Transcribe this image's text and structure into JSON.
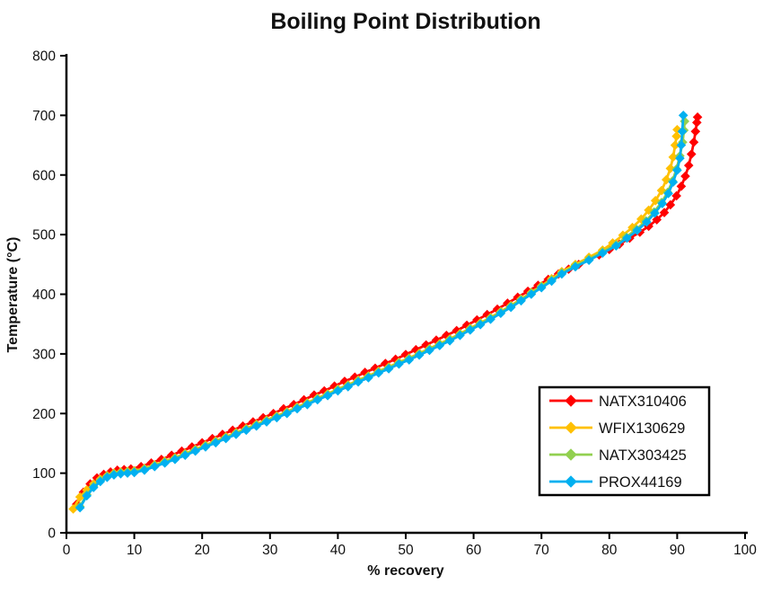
{
  "chart_data": {
    "type": "line",
    "title": "Boiling Point Distribution",
    "xlabel": "% recovery",
    "ylabel": "Temperature (°C)",
    "xlim": [
      0,
      100
    ],
    "ylim": [
      0,
      800
    ],
    "x_ticks": [
      0,
      10,
      20,
      30,
      40,
      50,
      60,
      70,
      80,
      90,
      100
    ],
    "y_ticks": [
      0,
      100,
      200,
      300,
      400,
      500,
      600,
      700,
      800
    ],
    "grid": false,
    "marker": "diamond",
    "legend_position": "inside-lower-right",
    "axis_color": "#000000",
    "text_color": "#111111",
    "series": [
      {
        "name": "NATX310406",
        "color": "#FF0000",
        "points": [
          [
            1.5,
            48
          ],
          [
            2.5,
            68
          ],
          [
            3.5,
            82
          ],
          [
            4.5,
            92
          ],
          [
            5.5,
            98
          ],
          [
            6.5,
            102
          ],
          [
            7.5,
            105
          ],
          [
            8.5,
            106
          ],
          [
            9.5,
            107
          ],
          [
            11,
            111
          ],
          [
            12.5,
            117
          ],
          [
            14,
            123
          ],
          [
            15.5,
            130
          ],
          [
            17,
            137
          ],
          [
            18.5,
            144
          ],
          [
            20,
            151
          ],
          [
            21.5,
            158
          ],
          [
            23,
            165
          ],
          [
            24.5,
            172
          ],
          [
            26,
            179
          ],
          [
            27.5,
            186
          ],
          [
            29,
            193
          ],
          [
            30.5,
            200
          ],
          [
            32,
            208
          ],
          [
            33.5,
            215
          ],
          [
            35,
            223
          ],
          [
            36.5,
            231
          ],
          [
            38,
            238
          ],
          [
            39.5,
            246
          ],
          [
            41,
            254
          ],
          [
            42.5,
            261
          ],
          [
            44,
            269
          ],
          [
            45.5,
            276
          ],
          [
            47,
            284
          ],
          [
            48.5,
            291
          ],
          [
            50,
            299
          ],
          [
            51.5,
            307
          ],
          [
            53,
            315
          ],
          [
            54.5,
            323
          ],
          [
            56,
            331
          ],
          [
            57.5,
            339
          ],
          [
            59,
            348
          ],
          [
            60.5,
            357
          ],
          [
            62,
            366
          ],
          [
            63.5,
            375
          ],
          [
            65,
            385
          ],
          [
            66.5,
            395
          ],
          [
            68,
            405
          ],
          [
            69.5,
            415
          ],
          [
            71,
            425
          ],
          [
            72.5,
            434
          ],
          [
            74,
            442
          ],
          [
            75.5,
            450
          ],
          [
            77,
            458
          ],
          [
            78.5,
            466
          ],
          [
            80,
            475
          ],
          [
            81.5,
            484
          ],
          [
            83,
            494
          ],
          [
            84.5,
            504
          ],
          [
            85.8,
            514
          ],
          [
            87,
            525
          ],
          [
            88.1,
            537
          ],
          [
            89,
            550
          ],
          [
            89.9,
            565
          ],
          [
            90.6,
            581
          ],
          [
            91.2,
            598
          ],
          [
            91.7,
            616
          ],
          [
            92.1,
            635
          ],
          [
            92.45,
            655
          ],
          [
            92.7,
            673
          ],
          [
            92.9,
            688
          ],
          [
            93,
            697
          ]
        ]
      },
      {
        "name": "WFIX130629",
        "color": "#FFC000",
        "points": [
          [
            1,
            40
          ],
          [
            2,
            60
          ],
          [
            3,
            72
          ],
          [
            4,
            82
          ],
          [
            5,
            90
          ],
          [
            6,
            96
          ],
          [
            7,
            100
          ],
          [
            8,
            102
          ],
          [
            9,
            103
          ],
          [
            10,
            104
          ],
          [
            11.5,
            108
          ],
          [
            13,
            114
          ],
          [
            14.5,
            120
          ],
          [
            16,
            126
          ],
          [
            17.5,
            133
          ],
          [
            19,
            140
          ],
          [
            20.5,
            147
          ],
          [
            22,
            154
          ],
          [
            23.5,
            161
          ],
          [
            25,
            168
          ],
          [
            26.5,
            175
          ],
          [
            28,
            182
          ],
          [
            29.5,
            189
          ],
          [
            31,
            196
          ],
          [
            32.5,
            203
          ],
          [
            34,
            211
          ],
          [
            35.5,
            218
          ],
          [
            37,
            226
          ],
          [
            38.5,
            233
          ],
          [
            40,
            241
          ],
          [
            41.5,
            248
          ],
          [
            43,
            256
          ],
          [
            44.5,
            263
          ],
          [
            46,
            271
          ],
          [
            47.5,
            278
          ],
          [
            49,
            286
          ],
          [
            50.5,
            293
          ],
          [
            52,
            301
          ],
          [
            53.5,
            309
          ],
          [
            55,
            317
          ],
          [
            56.5,
            325
          ],
          [
            58,
            334
          ],
          [
            59.5,
            343
          ],
          [
            61,
            352
          ],
          [
            62.5,
            361
          ],
          [
            64,
            371
          ],
          [
            65.5,
            381
          ],
          [
            67,
            392
          ],
          [
            68.5,
            403
          ],
          [
            70,
            414
          ],
          [
            71.5,
            426
          ],
          [
            73,
            438
          ],
          [
            75,
            450
          ],
          [
            77,
            462
          ],
          [
            79,
            474
          ],
          [
            80.5,
            486
          ],
          [
            82,
            499
          ],
          [
            83.4,
            512
          ],
          [
            84.7,
            526
          ],
          [
            85.8,
            541
          ],
          [
            86.8,
            557
          ],
          [
            87.7,
            574
          ],
          [
            88.4,
            592
          ],
          [
            89,
            611
          ],
          [
            89.4,
            630
          ],
          [
            89.7,
            650
          ],
          [
            89.9,
            665
          ],
          [
            90,
            676
          ]
        ]
      },
      {
        "name": "NATX303425",
        "color": "#92D050",
        "points": [
          [
            2,
            44
          ],
          [
            3,
            64
          ],
          [
            4,
            78
          ],
          [
            5,
            88
          ],
          [
            6,
            95
          ],
          [
            7,
            99
          ],
          [
            8,
            101
          ],
          [
            9,
            102
          ],
          [
            10,
            103
          ],
          [
            11.5,
            107
          ],
          [
            13,
            113
          ],
          [
            14.5,
            119
          ],
          [
            16,
            125
          ],
          [
            17.5,
            132
          ],
          [
            19,
            139
          ],
          [
            20.5,
            146
          ],
          [
            22,
            153
          ],
          [
            23.5,
            160
          ],
          [
            25,
            167
          ],
          [
            26.5,
            174
          ],
          [
            28,
            181
          ],
          [
            29.5,
            188
          ],
          [
            31,
            195
          ],
          [
            32.5,
            202
          ],
          [
            34,
            210
          ],
          [
            35.5,
            217
          ],
          [
            37,
            225
          ],
          [
            38.5,
            232
          ],
          [
            40,
            240
          ],
          [
            41.5,
            247
          ],
          [
            43,
            255
          ],
          [
            44.5,
            262
          ],
          [
            46,
            270
          ],
          [
            47.5,
            277
          ],
          [
            49,
            285
          ],
          [
            50.5,
            292
          ],
          [
            52,
            300
          ],
          [
            53.5,
            308
          ],
          [
            55,
            316
          ],
          [
            56.5,
            324
          ],
          [
            58,
            333
          ],
          [
            59.5,
            342
          ],
          [
            61,
            351
          ],
          [
            62.5,
            360
          ],
          [
            64,
            370
          ],
          [
            65.5,
            380
          ],
          [
            67,
            391
          ],
          [
            68.5,
            402
          ],
          [
            70,
            413
          ],
          [
            71.5,
            424
          ],
          [
            73,
            436
          ],
          [
            75,
            448
          ],
          [
            77,
            459
          ],
          [
            79,
            471
          ],
          [
            81,
            483
          ],
          [
            82.5,
            496
          ],
          [
            84,
            509
          ],
          [
            85.4,
            523
          ],
          [
            86.6,
            538
          ],
          [
            87.7,
            554
          ],
          [
            88.6,
            571
          ],
          [
            89.3,
            590
          ],
          [
            89.9,
            610
          ],
          [
            90.4,
            632
          ],
          [
            90.8,
            655
          ],
          [
            91,
            675
          ],
          [
            91.1,
            690
          ]
        ]
      },
      {
        "name": "PROX44169",
        "color": "#00B0F0",
        "points": [
          [
            2,
            42
          ],
          [
            3,
            62
          ],
          [
            4,
            76
          ],
          [
            5,
            86
          ],
          [
            6,
            93
          ],
          [
            7,
            97
          ],
          [
            8,
            99
          ],
          [
            9,
            100
          ],
          [
            10,
            101
          ],
          [
            11.5,
            105
          ],
          [
            13,
            111
          ],
          [
            14.5,
            117
          ],
          [
            16,
            123
          ],
          [
            17.5,
            130
          ],
          [
            19,
            137
          ],
          [
            20.5,
            144
          ],
          [
            22,
            151
          ],
          [
            23.5,
            158
          ],
          [
            25,
            165
          ],
          [
            26.5,
            172
          ],
          [
            28,
            179
          ],
          [
            29.5,
            186
          ],
          [
            31,
            193
          ],
          [
            32.5,
            200
          ],
          [
            34,
            208
          ],
          [
            35.5,
            215
          ],
          [
            37,
            223
          ],
          [
            38.5,
            230
          ],
          [
            40,
            238
          ],
          [
            41.5,
            245
          ],
          [
            43,
            253
          ],
          [
            44.5,
            260
          ],
          [
            46,
            268
          ],
          [
            47.5,
            275
          ],
          [
            49,
            283
          ],
          [
            50.5,
            290
          ],
          [
            52,
            298
          ],
          [
            53.5,
            306
          ],
          [
            55,
            314
          ],
          [
            56.5,
            322
          ],
          [
            58,
            331
          ],
          [
            59.5,
            340
          ],
          [
            61,
            349
          ],
          [
            62.5,
            358
          ],
          [
            64,
            368
          ],
          [
            65.5,
            378
          ],
          [
            67,
            389
          ],
          [
            68.5,
            400
          ],
          [
            70,
            411
          ],
          [
            71.5,
            422
          ],
          [
            73,
            434
          ],
          [
            75,
            446
          ],
          [
            77,
            457
          ],
          [
            79,
            469
          ],
          [
            81,
            481
          ],
          [
            82.6,
            494
          ],
          [
            84.1,
            507
          ],
          [
            85.5,
            521
          ],
          [
            86.7,
            536
          ],
          [
            87.8,
            552
          ],
          [
            88.7,
            569
          ],
          [
            89.4,
            588
          ],
          [
            90,
            608
          ],
          [
            90.4,
            628
          ],
          [
            90.6,
            650
          ],
          [
            90.75,
            673
          ],
          [
            90.9,
            700
          ]
        ]
      }
    ]
  }
}
